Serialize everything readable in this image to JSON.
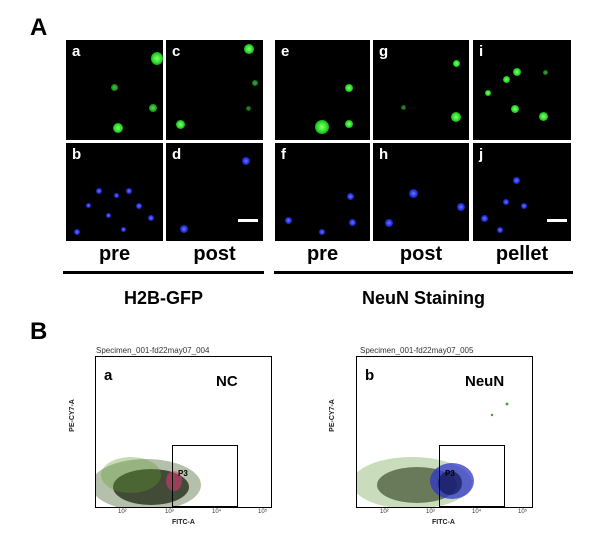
{
  "figure": {
    "section_a": "A",
    "section_b": "B"
  },
  "panels_top": [
    {
      "letter": "a"
    },
    {
      "letter": "c"
    },
    {
      "letter": "e"
    },
    {
      "letter": "g"
    },
    {
      "letter": "i"
    }
  ],
  "panels_bottom": [
    {
      "letter": "b"
    },
    {
      "letter": "d"
    },
    {
      "letter": "f"
    },
    {
      "letter": "h"
    },
    {
      "letter": "j"
    }
  ],
  "conditions": [
    "pre",
    "post",
    "pre",
    "post",
    "pellet"
  ],
  "groups": {
    "left": "H2B-GFP",
    "right": "NeuN Staining"
  },
  "flow_plots": [
    {
      "letter": "a",
      "title": "Specimen_001-fd22may07_004",
      "tag": "NC",
      "gate": "P3",
      "x_axis": "FITC-A",
      "y_axis": "PE-CY7-A"
    },
    {
      "letter": "b",
      "title": "Specimen_001-fd22may07_005",
      "tag": "NeuN",
      "gate": "P3",
      "x_axis": "FITC-A",
      "y_axis": "PE-CY7-A"
    }
  ],
  "tick_labels": [
    "10²",
    "10³",
    "10⁴",
    "10⁵"
  ]
}
